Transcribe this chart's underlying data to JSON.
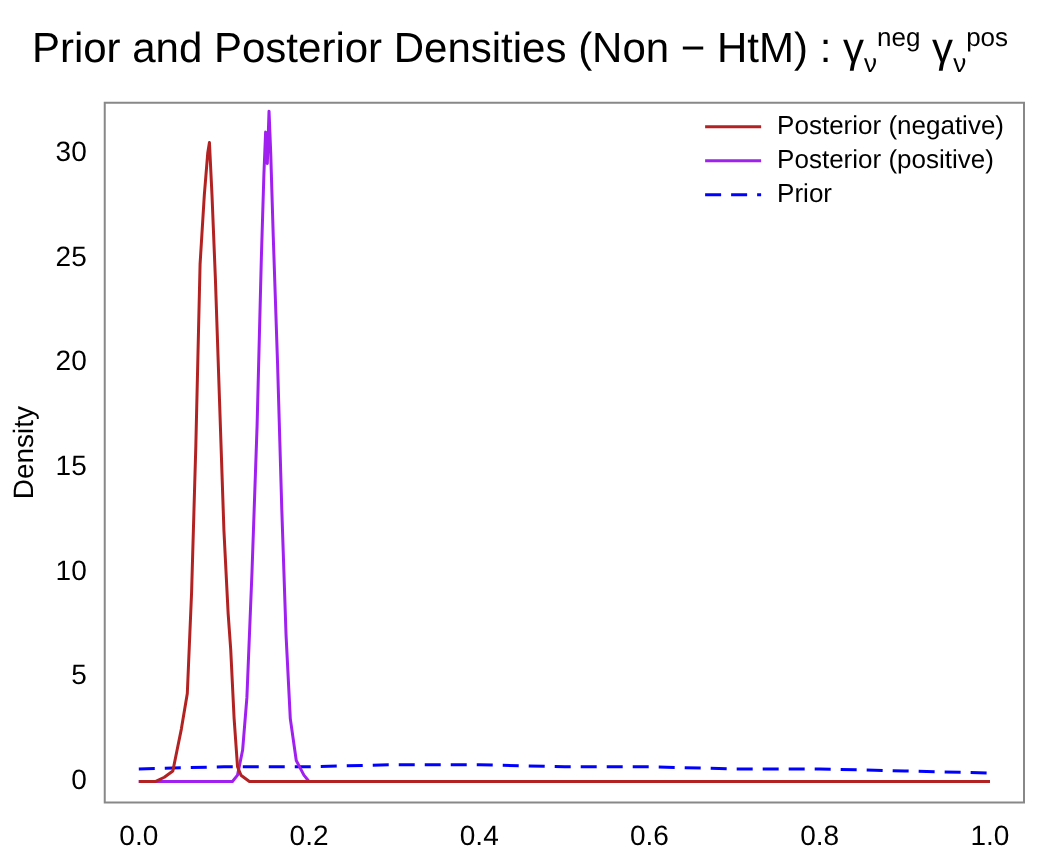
{
  "chart_data": {
    "type": "line",
    "title": "Prior and Posterior Densities (Non − HtM) : γ$_{ν}$$^{neg}$ γ$_{ν}$$^{pos}$",
    "ylabel": "Density",
    "xlim": [
      -0.04,
      1.04
    ],
    "ylim": [
      -1,
      32.4
    ],
    "xticks": [
      {
        "value": 0,
        "label": "0.0"
      },
      0.2,
      0.4,
      0.6,
      0.8,
      {
        "value": 1,
        "label": "1.0"
      }
    ],
    "yticks": [
      0,
      5,
      10,
      15,
      20,
      25,
      30
    ],
    "grid": false,
    "legend": "top right",
    "marker": "none",
    "series": [
      {
        "name": "Posterior (negative)",
        "color": "#b22222",
        "line_style": "solid",
        "x": [
          0.0,
          0.02,
          0.03,
          0.04,
          0.045,
          0.05,
          0.057,
          0.062,
          0.067,
          0.072,
          0.077,
          0.081,
          0.083,
          0.086,
          0.09,
          0.095,
          0.1,
          0.105,
          0.108,
          0.112,
          0.116,
          0.12,
          0.13,
          0.2,
          0.5,
          1.0
        ],
        "values": [
          0,
          0,
          0.2,
          0.5,
          1.5,
          2.5,
          4.2,
          9,
          16,
          24.7,
          28,
          30,
          30.5,
          28,
          24,
          18,
          12,
          8,
          6.3,
          3,
          0.7,
          0.3,
          0,
          0,
          0,
          0
        ]
      },
      {
        "name": "Posterior (positive)",
        "color": "#a020f0",
        "line_style": "solid",
        "x": [
          0.0,
          0.1,
          0.11,
          0.116,
          0.122,
          0.127,
          0.133,
          0.139,
          0.144,
          0.147,
          0.149,
          0.151,
          0.153,
          0.155,
          0.158,
          0.163,
          0.168,
          0.173,
          0.178,
          0.185,
          0.194,
          0.2,
          0.5,
          1.0
        ],
        "values": [
          0,
          0,
          0,
          0.3,
          1.5,
          4,
          10,
          17,
          25,
          29,
          31,
          29.5,
          32,
          30,
          26,
          20,
          13,
          7,
          3,
          1,
          0.3,
          0,
          0,
          0
        ]
      },
      {
        "name": "Prior",
        "color": "#0000ff",
        "line_style": "dashed",
        "x": [
          0.0,
          0.1,
          0.2,
          0.3,
          0.4,
          0.5,
          0.6,
          0.7,
          0.8,
          0.9,
          1.0
        ],
        "values": [
          0.6,
          0.7,
          0.7,
          0.8,
          0.8,
          0.7,
          0.7,
          0.6,
          0.6,
          0.5,
          0.4
        ]
      }
    ]
  }
}
